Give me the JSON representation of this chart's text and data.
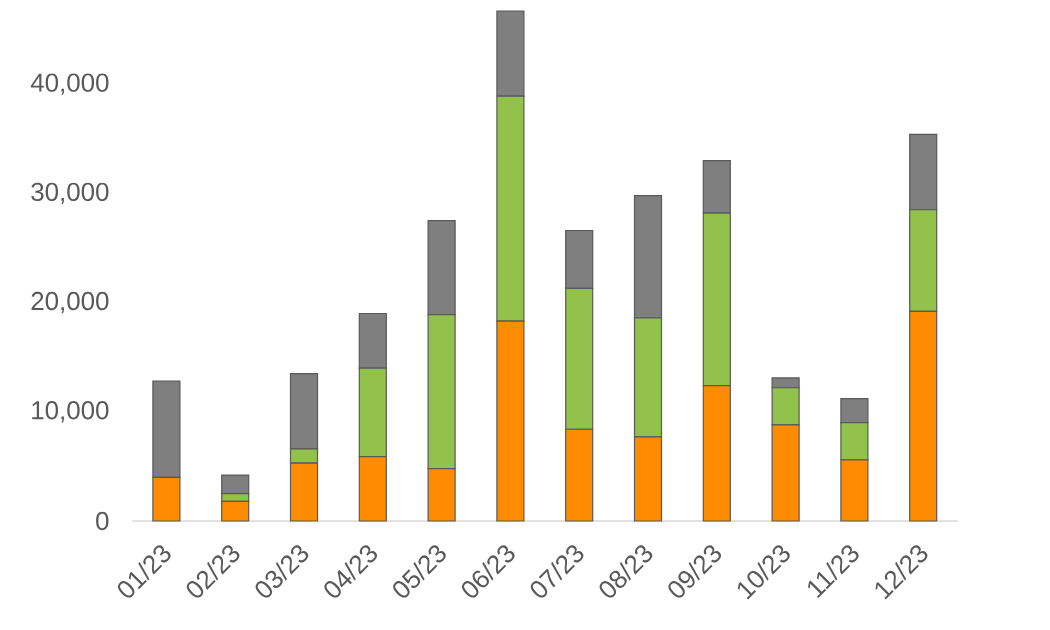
{
  "chart_data": {
    "type": "bar",
    "stacked": true,
    "categories": [
      "01/23",
      "02/23",
      "03/23",
      "04/23",
      "05/23",
      "06/23",
      "07/23",
      "08/23",
      "09/23",
      "10/23",
      "11/23",
      "12/23"
    ],
    "series": [
      {
        "color": "#ff8c00",
        "values": [
          4000,
          1800,
          5300,
          5900,
          4800,
          18300,
          8400,
          7700,
          12400,
          8800,
          5600,
          19200
        ]
      },
      {
        "color": "#92c14c",
        "values": [
          0,
          700,
          1300,
          8100,
          14100,
          20600,
          12900,
          10900,
          15800,
          3400,
          3400,
          9300
        ]
      },
      {
        "color": "#7f7f7f",
        "values": [
          8800,
          1700,
          6900,
          5000,
          8600,
          7800,
          5300,
          11200,
          4800,
          900,
          2200,
          6900
        ]
      }
    ],
    "ylim": [
      0,
      46700
    ],
    "yticks": [
      0,
      {
        "value": 10000,
        "label": "10,000"
      },
      {
        "value": 20000,
        "label": "20,000"
      },
      {
        "value": 30000,
        "label": "30,000"
      },
      {
        "value": 40000,
        "label": "40,000"
      }
    ]
  }
}
